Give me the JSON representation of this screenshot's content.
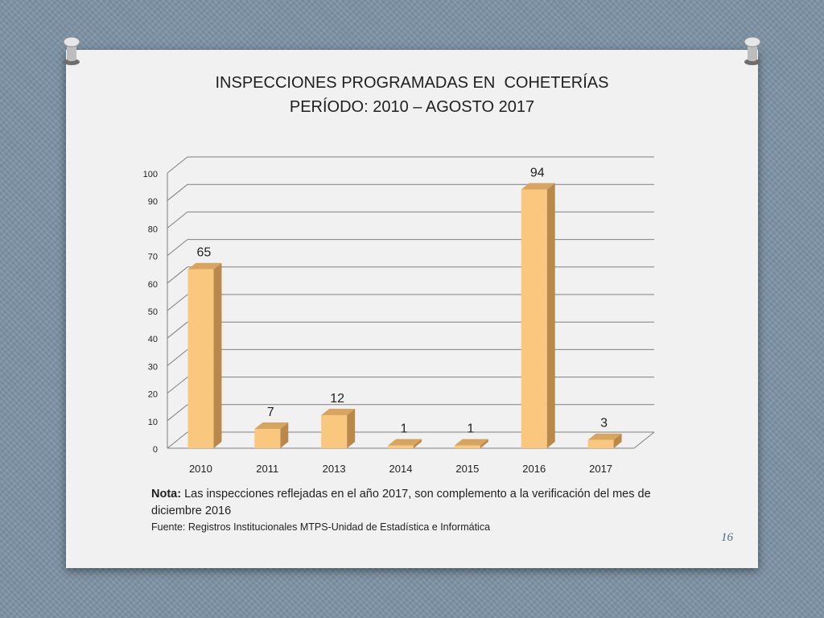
{
  "slide": {
    "title_line1": "INSPECCIONES PROGRAMADAS EN  COHETERÍAS",
    "title_line2": "PERÍODO: 2010 – AGOSTO 2017",
    "note_label": "Nota:",
    "note_text": " Las inspecciones reflejadas en el año 2017, son complemento a la verificación del mes de diciembre 2016",
    "source": "Fuente: Registros Institucionales MTPS-Unidad de Estadística e Informática",
    "page_number": "16"
  },
  "chart_data": {
    "type": "bar",
    "title": "",
    "categories": [
      "2010",
      "2011",
      "2013",
      "2014",
      "2015",
      "2016",
      "2017"
    ],
    "values": [
      65,
      7,
      12,
      1,
      1,
      94,
      3
    ],
    "data_labels": [
      "65",
      "7",
      "12",
      "1",
      "1",
      "94",
      "3"
    ],
    "ylim": [
      0,
      100
    ],
    "yticks": [
      0,
      10,
      20,
      30,
      40,
      50,
      60,
      70,
      80,
      90,
      100
    ],
    "grid": true,
    "style": "3d-column",
    "colors": {
      "bar_front": "#fac77e",
      "bar_side": "#b9884b",
      "bar_top": "#d8a560",
      "grid": "#7f7f7f"
    }
  }
}
